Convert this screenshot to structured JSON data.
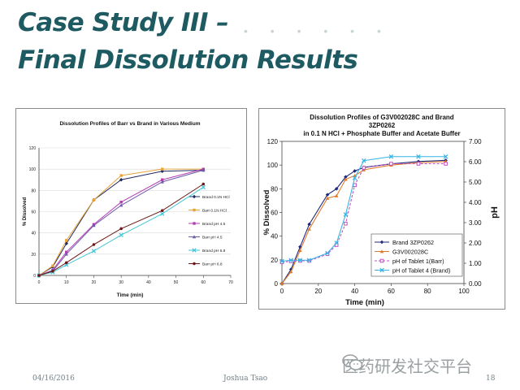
{
  "slide": {
    "title_line1": "Case Study III –",
    "title_line2": "Final Dissolution Results",
    "footer_date": "04/16/2016",
    "footer_presenter": "Joshua Tsao",
    "footer_page": "18",
    "watermark": "医药研发社交平台",
    "colors": {
      "title": "#1e5a61",
      "footer": "#6f7f86"
    }
  },
  "chart_data": [
    {
      "type": "line",
      "title": "Dissolution Profiles of Barr vs Brand in Various Medium",
      "xlabel": "Time (min)",
      "ylabel": "% Dissolved",
      "xlim": [
        0,
        70
      ],
      "ylim": [
        0,
        120
      ],
      "xticks": [
        "0",
        "10",
        "20",
        "30",
        "40",
        "50",
        "60",
        "70"
      ],
      "yticks": [
        "0",
        "20",
        "40",
        "60",
        "80",
        "100",
        "120"
      ],
      "series": [
        {
          "name": "Brand 0.1N HCl",
          "x": [
            0,
            5,
            10,
            20,
            30,
            45,
            60
          ],
          "y": [
            0,
            8,
            30,
            71,
            90,
            98,
            99
          ],
          "color": "#1f2a60",
          "marker": "diamond"
        },
        {
          "name": "Barr 0.1N HCl",
          "x": [
            0,
            5,
            10,
            20,
            30,
            45,
            60
          ],
          "y": [
            0,
            9,
            33,
            71,
            94,
            100,
            100
          ],
          "color": "#e8a33a",
          "marker": "square"
        },
        {
          "name": "Brand pH 4.5",
          "x": [
            0,
            5,
            10,
            20,
            30,
            45,
            60
          ],
          "y": [
            0,
            5,
            22,
            48,
            69,
            90,
            100
          ],
          "color": "#b33fb3",
          "marker": "square"
        },
        {
          "name": "Barr pH 4.5",
          "x": [
            0,
            5,
            10,
            20,
            30,
            45,
            60
          ],
          "y": [
            0,
            4,
            20,
            47,
            66,
            88,
            99
          ],
          "color": "#6d5aa8",
          "marker": "triangle"
        },
        {
          "name": "Brand pH 6.8",
          "x": [
            0,
            5,
            10,
            20,
            30,
            45,
            60
          ],
          "y": [
            0,
            3,
            10,
            23,
            38,
            58,
            83
          ],
          "color": "#44c6d6",
          "marker": "x"
        },
        {
          "name": "Barr pH 6.8",
          "x": [
            0,
            5,
            10,
            20,
            30,
            45,
            60
          ],
          "y": [
            0,
            4,
            12,
            29,
            44,
            61,
            86
          ],
          "color": "#6e1616",
          "marker": "circle"
        }
      ]
    },
    {
      "type": "line",
      "title_lines": [
        "Dissolution Profiles of G3V002028C and Brand",
        "3ZP0262",
        "in 0.1 N HCl + Phosphate Buffer and Acetate Buffer"
      ],
      "xlabel": "Time (min)",
      "ylabel": "% Dissolved",
      "y2label": "pH",
      "xlim": [
        0,
        100
      ],
      "ylim": [
        0,
        120
      ],
      "y2lim": [
        0,
        7
      ],
      "xticks": [
        "0",
        "20",
        "40",
        "60",
        "80",
        "100"
      ],
      "yticks": [
        "0",
        "20",
        "40",
        "60",
        "80",
        "100",
        "120"
      ],
      "y2ticks": [
        "0.00",
        "1.00",
        "2.00",
        "3.00",
        "4.00",
        "5.00",
        "6.00",
        "7.00"
      ],
      "series": [
        {
          "name": "Brand 3ZP0262",
          "axis": "left",
          "x": [
            0,
            5,
            10,
            15,
            25,
            30,
            35,
            40,
            45,
            60,
            75,
            90
          ],
          "y": [
            0,
            12,
            31,
            50,
            75,
            80,
            90,
            95,
            98,
            101,
            103,
            104
          ],
          "color": "#1f2a7a",
          "marker": "diamond"
        },
        {
          "name": "G3V002028C",
          "axis": "left",
          "x": [
            0,
            5,
            10,
            15,
            25,
            30,
            35,
            40,
            45,
            60,
            75,
            90
          ],
          "y": [
            0,
            10,
            28,
            46,
            72,
            74,
            88,
            91,
            96,
            100,
            102,
            103
          ],
          "color": "#e07b2c",
          "marker": "triangle"
        },
        {
          "name": "pH of Tablet 1(Barr)",
          "axis": "right",
          "x": [
            0,
            5,
            10,
            15,
            25,
            30,
            35,
            40,
            45,
            60,
            75,
            90
          ],
          "y": [
            1.05,
            1.1,
            1.12,
            1.12,
            1.45,
            1.9,
            2.95,
            4.85,
            5.7,
            5.9,
            5.9,
            5.9
          ],
          "color": "#c44fc4",
          "marker": "square",
          "dashed": true
        },
        {
          "name": "pH of Tablet 4 (Brand)",
          "axis": "right",
          "x": [
            0,
            5,
            10,
            15,
            25,
            30,
            35,
            40,
            45,
            60,
            75,
            90
          ],
          "y": [
            1.1,
            1.15,
            1.15,
            1.15,
            1.5,
            2.0,
            3.4,
            5.2,
            6.05,
            6.25,
            6.25,
            6.25
          ],
          "color": "#37b4e4",
          "marker": "x"
        }
      ]
    }
  ]
}
